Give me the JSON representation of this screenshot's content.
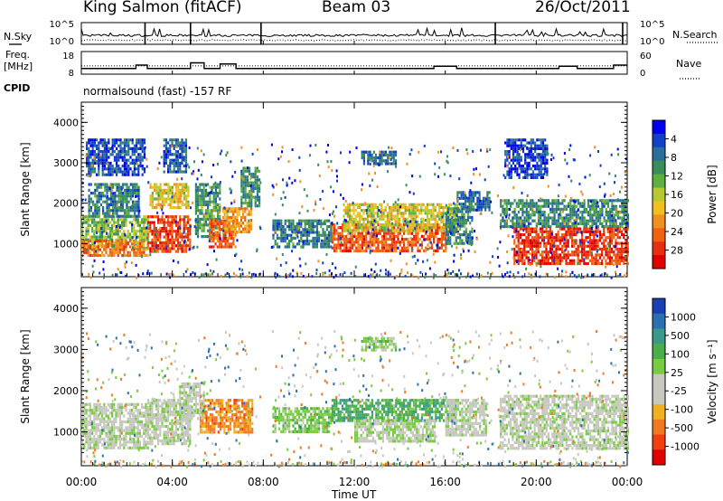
{
  "header": {
    "site": "King Salmon (fitACF)",
    "beam": "Beam 03",
    "date": "26/Oct/2011"
  },
  "sky_panel": {
    "left_label": "N.Sky",
    "right_label": "N.Search",
    "ticks_left": [
      "10^5",
      "10^0"
    ],
    "ticks_right": [
      "10^5",
      "10^0"
    ]
  },
  "freq_panel": {
    "left_label_1": "Freq.",
    "left_label_2": "[MHz]",
    "right_label": "Nave",
    "ticks_left": [
      "18",
      "8"
    ],
    "ticks_right": [
      "60",
      "0"
    ]
  },
  "cpid": {
    "label": "CPID",
    "text": "normalsound (fast) -157 RF"
  },
  "axes": {
    "xlabel": "Time UT",
    "xticks": [
      "00:00",
      "04:00",
      "08:00",
      "12:00",
      "16:00",
      "20:00",
      "00:00"
    ],
    "ylabel": "Slant Range [km]",
    "yticks": [
      "1000",
      "2000",
      "3000",
      "4000"
    ]
  },
  "colorbars": {
    "power": {
      "label": "Power [dB]",
      "ticks": [
        "4",
        "8",
        "12",
        "16",
        "20",
        "24",
        "28"
      ],
      "colors": [
        "#0000ee",
        "#1040c8",
        "#2a6f9a",
        "#3a8c5a",
        "#5bb040",
        "#b8c830",
        "#f0c020",
        "#f09020",
        "#f06010",
        "#e83010",
        "#e00000"
      ]
    },
    "velocity": {
      "label": "Velocity [m s⁻¹]",
      "ticks": [
        "1000",
        "500",
        "100",
        "25",
        "-25",
        "-100",
        "-500",
        "-1000"
      ],
      "colors": [
        "#1a3fb0",
        "#2a70b0",
        "#3a9a8a",
        "#4aae4a",
        "#78cc40",
        "#c8c8c0",
        "#c8c8c0",
        "#f0b020",
        "#f07a20",
        "#f04010",
        "#e00000"
      ]
    }
  },
  "chart_data": {
    "type": "heatmap",
    "x_range_hours": [
      0,
      24
    ],
    "y_range_km": [
      180,
      4500
    ],
    "power_range_db": [
      0,
      30
    ],
    "velocity_range_ms": [
      -1000,
      1000
    ],
    "power_blobs": [
      {
        "t0": 0.0,
        "t1": 2.9,
        "r0": 900,
        "r1": 1700,
        "p": 13
      },
      {
        "t0": 0.0,
        "t1": 2.9,
        "r0": 700,
        "r1": 1100,
        "p": 22
      },
      {
        "t0": 0.3,
        "t1": 2.5,
        "r0": 1700,
        "r1": 2500,
        "p": 8
      },
      {
        "t0": 0.2,
        "t1": 2.8,
        "r0": 2700,
        "r1": 3600,
        "p": 5
      },
      {
        "t0": 2.9,
        "t1": 4.8,
        "r0": 800,
        "r1": 1700,
        "p": 25
      },
      {
        "t0": 3.0,
        "t1": 4.7,
        "r0": 1900,
        "r1": 2500,
        "p": 17
      },
      {
        "t0": 3.6,
        "t1": 4.6,
        "r0": 2800,
        "r1": 3600,
        "p": 6
      },
      {
        "t0": 5.0,
        "t1": 6.1,
        "r0": 1200,
        "r1": 2500,
        "p": 10
      },
      {
        "t0": 5.6,
        "t1": 6.8,
        "r0": 900,
        "r1": 1600,
        "p": 24
      },
      {
        "t0": 6.2,
        "t1": 7.5,
        "r0": 1300,
        "r1": 1900,
        "p": 20
      },
      {
        "t0": 7.0,
        "t1": 7.9,
        "r0": 1900,
        "r1": 2900,
        "p": 9
      },
      {
        "t0": 8.4,
        "t1": 11.0,
        "r0": 900,
        "r1": 1600,
        "p": 8
      },
      {
        "t0": 11.0,
        "t1": 16.0,
        "r0": 800,
        "r1": 1500,
        "p": 24
      },
      {
        "t0": 11.5,
        "t1": 16.5,
        "r0": 1300,
        "r1": 2000,
        "p": 16
      },
      {
        "t0": 16.0,
        "t1": 17.2,
        "r0": 1000,
        "r1": 1900,
        "p": 9
      },
      {
        "t0": 16.5,
        "t1": 17.9,
        "r0": 1800,
        "r1": 2300,
        "p": 7
      },
      {
        "t0": 12.3,
        "t1": 13.8,
        "r0": 2950,
        "r1": 3300,
        "p": 7
      },
      {
        "t0": 18.4,
        "t1": 24.0,
        "r0": 1400,
        "r1": 2100,
        "p": 9
      },
      {
        "t0": 19.0,
        "t1": 24.0,
        "r0": 500,
        "r1": 1400,
        "p": 26
      },
      {
        "t0": 18.6,
        "t1": 20.5,
        "r0": 2600,
        "r1": 3600,
        "p": 4
      }
    ],
    "velocity_blobs": [
      {
        "t0": 0.0,
        "t1": 2.9,
        "r0": 600,
        "r1": 1700,
        "v": 0
      },
      {
        "t0": 2.9,
        "t1": 4.8,
        "r0": 700,
        "r1": 1800,
        "v": 0
      },
      {
        "t0": 5.2,
        "t1": 7.5,
        "r0": 1000,
        "r1": 1800,
        "v": -500
      },
      {
        "t0": 4.3,
        "t1": 5.4,
        "r0": 1300,
        "r1": 2200,
        "v": 0
      },
      {
        "t0": 8.4,
        "t1": 11.0,
        "r0": 1000,
        "r1": 1600,
        "v": 200
      },
      {
        "t0": 11.0,
        "t1": 16.5,
        "r0": 1300,
        "r1": 1800,
        "v": 400
      },
      {
        "t0": 12.0,
        "t1": 15.5,
        "r0": 800,
        "r1": 1300,
        "v": 60
      },
      {
        "t0": 16.0,
        "t1": 17.8,
        "r0": 900,
        "r1": 1800,
        "v": 0
      },
      {
        "t0": 18.4,
        "t1": 24.0,
        "r0": 600,
        "r1": 1900,
        "v": 0
      },
      {
        "t0": 12.3,
        "t1": 13.8,
        "r0": 2950,
        "r1": 3300,
        "v": 150
      }
    ],
    "gaps_hours": [
      [
        7.85,
        8.3
      ],
      [
        18.1,
        18.25
      ]
    ],
    "freq_mhz": [
      {
        "t0": 0.0,
        "t1": 2.4,
        "f": 10.5
      },
      {
        "t0": 2.4,
        "t1": 2.9,
        "f": 12.0
      },
      {
        "t0": 2.9,
        "t1": 4.8,
        "f": 10.5
      },
      {
        "t0": 4.8,
        "t1": 5.4,
        "f": 13.0
      },
      {
        "t0": 5.4,
        "t1": 6.1,
        "f": 10.5
      },
      {
        "t0": 6.1,
        "t1": 6.8,
        "f": 12.5
      },
      {
        "t0": 6.8,
        "t1": 15.5,
        "f": 10.5
      },
      {
        "t0": 15.5,
        "t1": 16.5,
        "f": 11.5
      },
      {
        "t0": 16.5,
        "t1": 21.0,
        "f": 10.5
      },
      {
        "t0": 21.0,
        "t1": 21.8,
        "f": 11.5
      },
      {
        "t0": 21.8,
        "t1": 23.4,
        "f": 10.5
      },
      {
        "t0": 23.4,
        "t1": 24.0,
        "f": 12.0
      }
    ],
    "nsky_log": 1.8,
    "nsearch_log": 0.8,
    "nave": 22
  }
}
